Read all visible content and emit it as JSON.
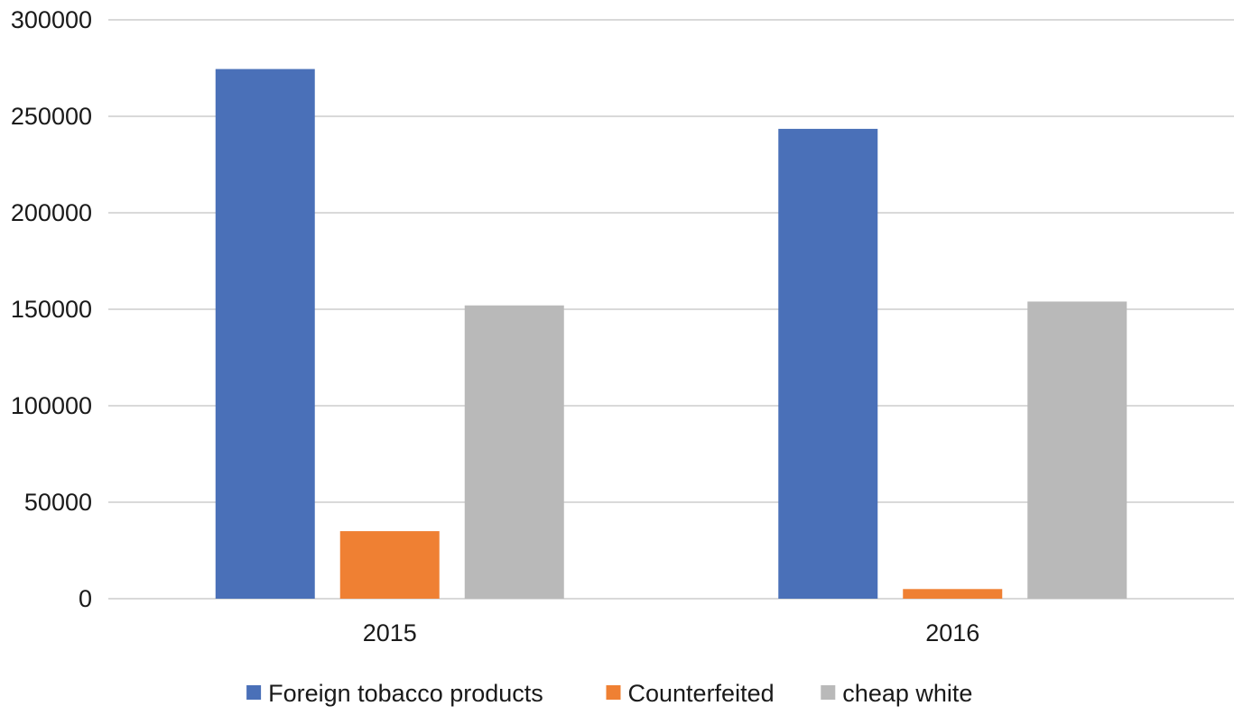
{
  "chart_data": {
    "type": "bar",
    "title": "",
    "xlabel": "",
    "ylabel": "",
    "categories": [
      "2015",
      "2016"
    ],
    "series": [
      {
        "name": "Foreign tobacco products",
        "color": "#4a70b8",
        "values": [
          274500,
          243500
        ]
      },
      {
        "name": "Counterfeited",
        "color": "#ef8033",
        "values": [
          35000,
          5000
        ]
      },
      {
        "name": "cheap white",
        "color": "#b9b9b9",
        "values": [
          152000,
          154000
        ]
      }
    ],
    "ylim": [
      0,
      300000
    ],
    "yticks": [
      "0",
      "50000",
      "100000",
      "150000",
      "200000",
      "250000",
      "300000"
    ],
    "grid": true,
    "legend_position": "bottom"
  }
}
